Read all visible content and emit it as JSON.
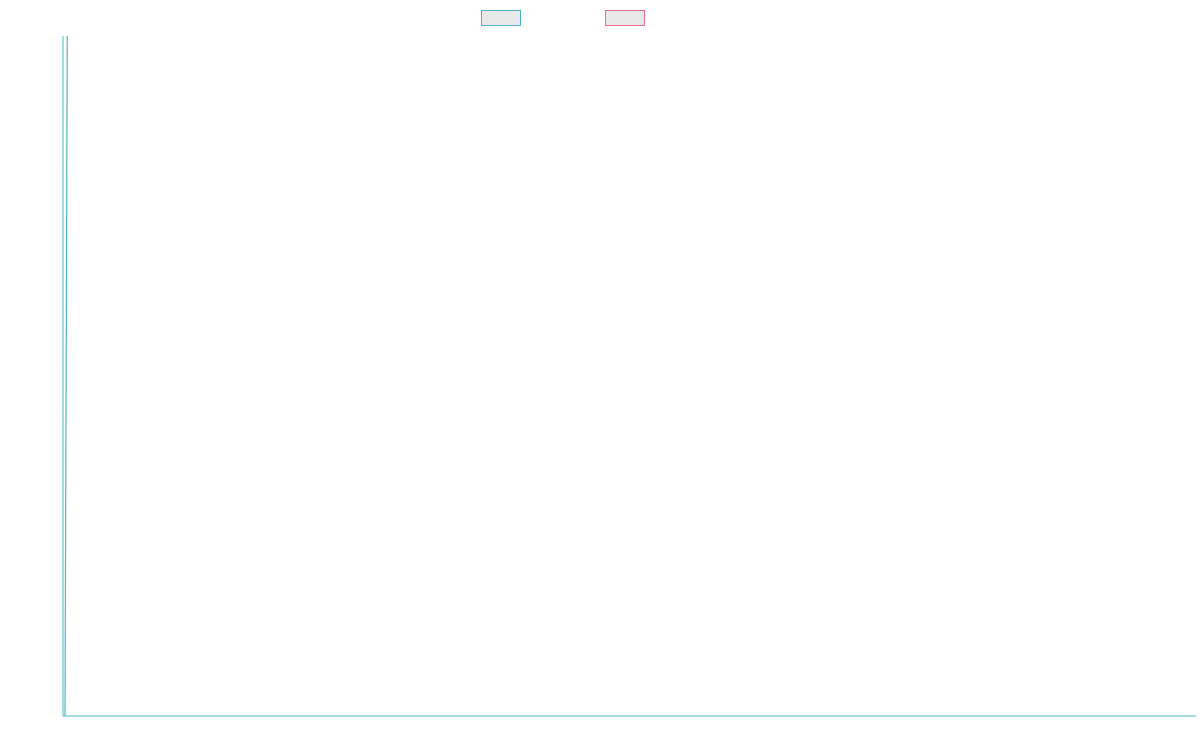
{
  "chart_data": {
    "type": "line",
    "title": "",
    "xlabel": "",
    "ylabel": "",
    "grid": false,
    "legend_position": "top-center",
    "series": [
      {
        "color": "#4bb4c3",
        "fill": "#e8e8e8",
        "points": [
          {
            "x": 0,
            "y": 0
          },
          {
            "x": 0.002,
            "y": 1
          }
        ]
      },
      {
        "color": "#f06a8a",
        "fill": "#e8e8e8",
        "points": []
      }
    ],
    "axis_color": "#4bb4c3"
  }
}
